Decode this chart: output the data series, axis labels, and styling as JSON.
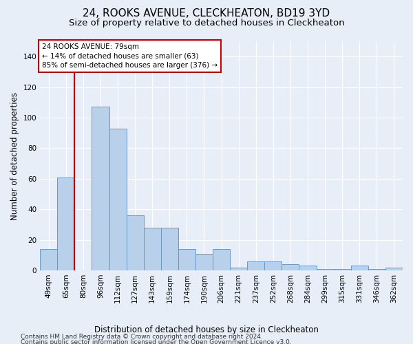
{
  "title": "24, ROOKS AVENUE, CLECKHEATON, BD19 3YD",
  "subtitle": "Size of property relative to detached houses in Cleckheaton",
  "xlabel": "Distribution of detached houses by size in Cleckheaton",
  "ylabel": "Number of detached properties",
  "footer1": "Contains HM Land Registry data © Crown copyright and database right 2024.",
  "footer2": "Contains public sector information licensed under the Open Government Licence v3.0.",
  "categories": [
    "49sqm",
    "65sqm",
    "80sqm",
    "96sqm",
    "112sqm",
    "127sqm",
    "143sqm",
    "159sqm",
    "174sqm",
    "190sqm",
    "206sqm",
    "221sqm",
    "237sqm",
    "252sqm",
    "268sqm",
    "284sqm",
    "299sqm",
    "315sqm",
    "331sqm",
    "346sqm",
    "362sqm"
  ],
  "values": [
    14,
    61,
    0,
    107,
    93,
    36,
    28,
    28,
    14,
    11,
    14,
    2,
    6,
    6,
    4,
    3,
    1,
    1,
    3,
    1,
    2
  ],
  "bar_color": "#b8d0ea",
  "bar_edge_color": "#6699cc",
  "vline_x_index": 2,
  "vline_color": "#cc0000",
  "annotation_text": "24 ROOKS AVENUE: 79sqm\n← 14% of detached houses are smaller (63)\n85% of semi-detached houses are larger (376) →",
  "annotation_box_facecolor": "#ffffff",
  "annotation_box_edgecolor": "#cc0000",
  "ylim": [
    0,
    150
  ],
  "yticks": [
    0,
    20,
    40,
    60,
    80,
    100,
    120,
    140
  ],
  "background_color": "#e8eef8",
  "grid_color": "#ffffff",
  "title_fontsize": 11,
  "subtitle_fontsize": 9.5,
  "axis_label_fontsize": 8.5,
  "tick_fontsize": 7.5,
  "footer_fontsize": 6.5
}
